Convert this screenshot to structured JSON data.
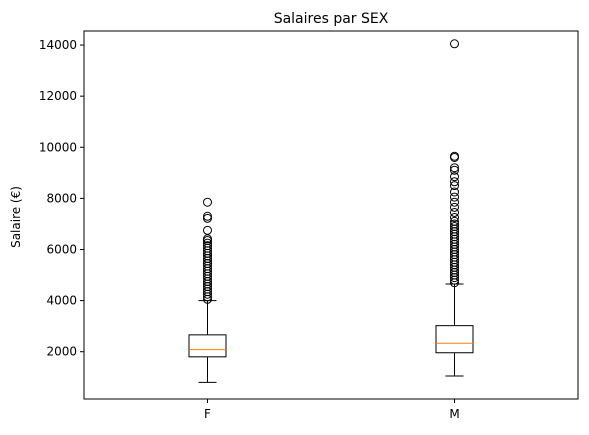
{
  "chart_data": {
    "type": "box",
    "title": "Salaires par SEX",
    "xlabel": "",
    "ylabel": "Salaire (€)",
    "categories": [
      "F",
      "M"
    ],
    "ylim": [
      150,
      14550
    ],
    "yticks": [
      2000,
      4000,
      6000,
      8000,
      10000,
      12000,
      14000
    ],
    "ytick_labels": [
      "2000",
      "4000",
      "6000",
      "8000",
      "10000",
      "12000",
      "14000"
    ],
    "grid": false,
    "series": [
      {
        "category": "F",
        "whisker_low": 800,
        "q1": 1800,
        "median": 2080,
        "q3": 2660,
        "whisker_high": 4000,
        "outliers": [
          4050,
          4150,
          4250,
          4350,
          4450,
          4550,
          4650,
          4750,
          4850,
          4950,
          5050,
          5150,
          5250,
          5350,
          5450,
          5550,
          5650,
          5750,
          5850,
          5950,
          6050,
          6150,
          6250,
          6350,
          6420,
          6750,
          7220,
          7300,
          7850
        ]
      },
      {
        "category": "M",
        "whisker_low": 1050,
        "q1": 1960,
        "median": 2330,
        "q3": 3020,
        "whisker_high": 4650,
        "outliers": [
          4700,
          4800,
          4900,
          5000,
          5100,
          5200,
          5300,
          5400,
          5500,
          5600,
          5700,
          5800,
          5900,
          6000,
          6100,
          6200,
          6300,
          6400,
          6500,
          6600,
          6700,
          6800,
          6900,
          7000,
          7100,
          7250,
          7450,
          7650,
          7850,
          8050,
          8250,
          8500,
          8650,
          8850,
          9100,
          9200,
          9600,
          9650,
          14050
        ]
      }
    ],
    "colors": {
      "box": "#000000",
      "median": "#ff7f0e",
      "outlier": "#000000"
    }
  }
}
